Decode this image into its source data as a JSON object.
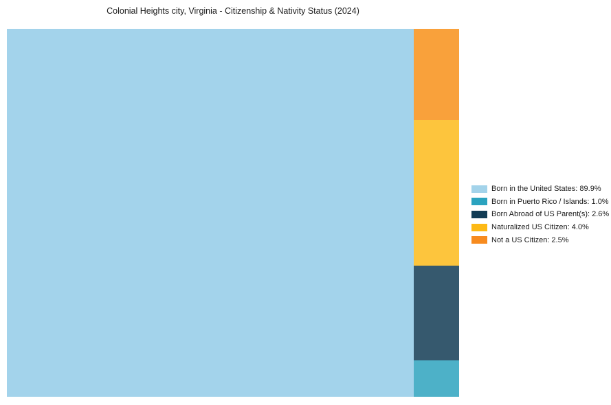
{
  "chart_data": {
    "type": "treemap",
    "title": "Colonial Heights city, Virginia - Citizenship & Nativity Status (2024)",
    "categories": [
      "Born in the United States",
      "Born in Puerto Rico / Islands",
      "Born Abroad of US Parent(s)",
      "Naturalized US Citizen",
      "Not a US Citizen"
    ],
    "values": [
      89.9,
      1.0,
      2.6,
      4.0,
      2.5
    ],
    "unit": "%",
    "tile_colors": [
      "#a3d3eb",
      "#4db1c8",
      "#36596e",
      "#fdc53d",
      "#f9a13b"
    ],
    "right_column_top_to_bottom": [
      4,
      3,
      2,
      1
    ],
    "legend_position": "right",
    "legend": [
      {
        "label": "Born in the United States: 89.9%",
        "color": "#a3d3ea"
      },
      {
        "label": "Born in Puerto Rico / Islands: 1.0%",
        "color": "#2ba3bf"
      },
      {
        "label": "Born Abroad of US Parent(s): 2.6%",
        "color": "#123c55"
      },
      {
        "label": "Naturalized US Citizen: 4.0%",
        "color": "#fdb915"
      },
      {
        "label": "Not a US Citizen: 2.5%",
        "color": "#f78b1f"
      }
    ]
  }
}
